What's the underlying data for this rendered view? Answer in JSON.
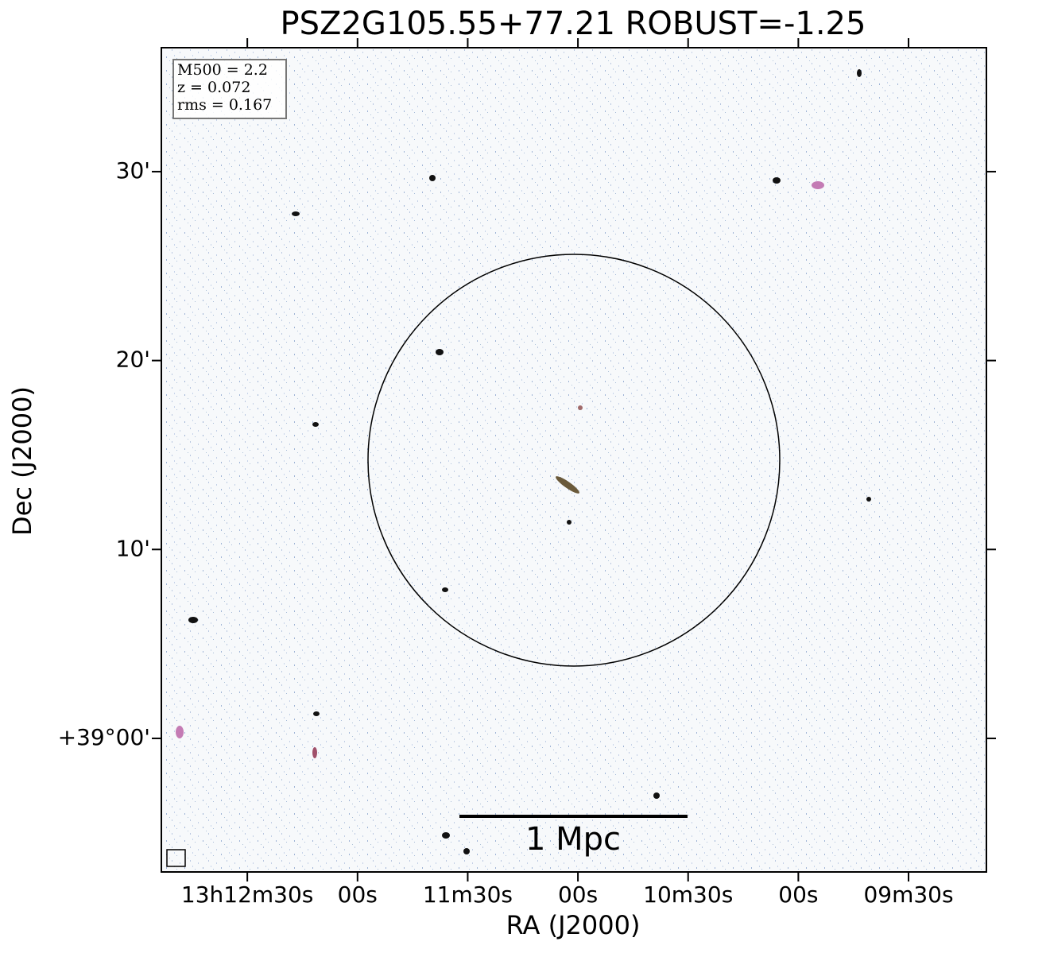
{
  "chart_data": {
    "type": "image",
    "title": "PSZ2G105.55+77.21 ROBUST=-1.25",
    "xlabel": "RA (J2000)",
    "ylabel": "Dec (J2000)",
    "xlim": [
      47573.4,
      47348.8
    ],
    "ylim": [
      -7.07,
      36.56
    ],
    "xticks": [
      {
        "value": 47550,
        "label": "13h12m30s"
      },
      {
        "value": 47520,
        "label": "00s"
      },
      {
        "value": 47490,
        "label": "11m30s"
      },
      {
        "value": 47460,
        "label": "00s"
      },
      {
        "value": 47430,
        "label": "10m30s"
      },
      {
        "value": 47400,
        "label": "00s"
      },
      {
        "value": 47370,
        "label": "09m30s"
      }
    ],
    "yticks": [
      {
        "value": 0,
        "label": "+39°00'"
      },
      {
        "value": 10,
        "label": "10'"
      },
      {
        "value": 20,
        "label": "20'"
      },
      {
        "value": 30,
        "label": "30'"
      }
    ],
    "annotations": [
      "M500 = 2.2",
      "z = 0.072",
      "rms = 0.167"
    ],
    "scalebar_label": "1 Mpc"
  }
}
